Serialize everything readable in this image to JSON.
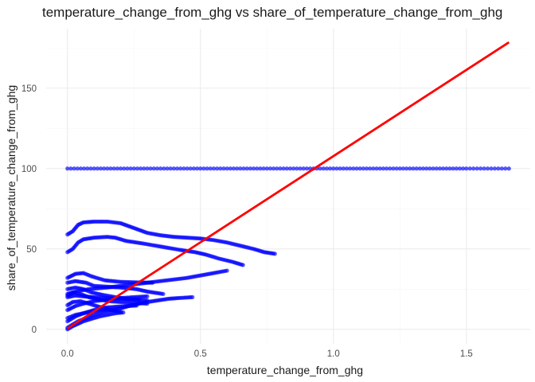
{
  "chart_data": {
    "type": "scatter",
    "title": "temperature_change_from_ghg vs share_of_temperature_change_from_ghg",
    "xlabel": "temperature_change_from_ghg",
    "ylabel": "share_of_temperature_change_from_ghg",
    "xlim": [
      -0.08,
      1.74
    ],
    "ylim": [
      -9,
      187
    ],
    "x_ticks": [
      0.0,
      0.5,
      1.0,
      1.5
    ],
    "x_tick_labels": [
      "0.0",
      "0.5",
      "1.0",
      "1.5"
    ],
    "y_ticks": [
      0,
      50,
      100,
      150
    ],
    "y_tick_labels": [
      "0",
      "50",
      "100",
      "150"
    ],
    "grid": true,
    "legend": "none",
    "point_color": "#0000ff",
    "point_opacity": 0.65,
    "fit_line_color": "#ff0000",
    "fit_line": {
      "x": [
        0.0,
        1.66
      ],
      "y": [
        0.5,
        178.5
      ]
    },
    "series": [
      {
        "points": [
          [
            0.0,
            100
          ],
          [
            0.1,
            100
          ],
          [
            0.2,
            100
          ],
          [
            0.3,
            100
          ],
          [
            0.4,
            100
          ],
          [
            0.5,
            100
          ],
          [
            0.6,
            100
          ],
          [
            0.7,
            100
          ],
          [
            0.8,
            100
          ],
          [
            0.9,
            100
          ],
          [
            1.0,
            100
          ],
          [
            1.1,
            100
          ],
          [
            1.2,
            100
          ],
          [
            1.3,
            100
          ],
          [
            1.4,
            100
          ],
          [
            1.5,
            100
          ],
          [
            1.66,
            100
          ]
        ]
      },
      {
        "points": [
          [
            0.0,
            59
          ],
          [
            0.02,
            61
          ],
          [
            0.04,
            65
          ],
          [
            0.06,
            66.5
          ],
          [
            0.1,
            67
          ],
          [
            0.15,
            67
          ],
          [
            0.2,
            66
          ],
          [
            0.25,
            63
          ],
          [
            0.3,
            60
          ],
          [
            0.35,
            58.5
          ],
          [
            0.4,
            57.5
          ],
          [
            0.45,
            57
          ],
          [
            0.5,
            56.5
          ],
          [
            0.55,
            55.5
          ],
          [
            0.6,
            54
          ],
          [
            0.65,
            52
          ],
          [
            0.7,
            50
          ],
          [
            0.74,
            48
          ],
          [
            0.78,
            47
          ]
        ]
      },
      {
        "points": [
          [
            0.0,
            48
          ],
          [
            0.02,
            50
          ],
          [
            0.04,
            54
          ],
          [
            0.06,
            56
          ],
          [
            0.1,
            57
          ],
          [
            0.15,
            57.5
          ],
          [
            0.18,
            57
          ],
          [
            0.22,
            55
          ],
          [
            0.28,
            53.5
          ],
          [
            0.35,
            51.5
          ],
          [
            0.42,
            49.5
          ],
          [
            0.48,
            48
          ],
          [
            0.52,
            46.5
          ],
          [
            0.57,
            44
          ],
          [
            0.62,
            42
          ],
          [
            0.66,
            40
          ]
        ]
      },
      {
        "points": [
          [
            0.0,
            21
          ],
          [
            0.03,
            23.5
          ],
          [
            0.08,
            25
          ],
          [
            0.15,
            26
          ],
          [
            0.2,
            27
          ],
          [
            0.25,
            28
          ],
          [
            0.3,
            29
          ],
          [
            0.35,
            30
          ],
          [
            0.4,
            31
          ],
          [
            0.45,
            32
          ],
          [
            0.5,
            33.5
          ],
          [
            0.55,
            35
          ],
          [
            0.6,
            36.5
          ]
        ]
      },
      {
        "points": [
          [
            0.0,
            32
          ],
          [
            0.03,
            34.5
          ],
          [
            0.06,
            35
          ],
          [
            0.09,
            33
          ],
          [
            0.14,
            30.5
          ],
          [
            0.2,
            29.5
          ],
          [
            0.26,
            29.2
          ],
          [
            0.32,
            29
          ]
        ]
      },
      {
        "points": [
          [
            0.0,
            29
          ],
          [
            0.03,
            30
          ],
          [
            0.07,
            29
          ],
          [
            0.1,
            27
          ],
          [
            0.15,
            26.5
          ],
          [
            0.2,
            26
          ],
          [
            0.26,
            25
          ],
          [
            0.3,
            23.5
          ],
          [
            0.36,
            22
          ]
        ]
      },
      {
        "points": [
          [
            0.0,
            12
          ],
          [
            0.03,
            14.5
          ],
          [
            0.06,
            16
          ],
          [
            0.1,
            17.5
          ],
          [
            0.15,
            18.5
          ],
          [
            0.2,
            19.5
          ],
          [
            0.25,
            20
          ],
          [
            0.3,
            20.5
          ]
        ]
      },
      {
        "points": [
          [
            0.0,
            20
          ],
          [
            0.03,
            21
          ],
          [
            0.06,
            20.5
          ],
          [
            0.1,
            20
          ],
          [
            0.15,
            19.5
          ],
          [
            0.2,
            19
          ],
          [
            0.25,
            18.5
          ],
          [
            0.3,
            18
          ]
        ]
      },
      {
        "points": [
          [
            0.0,
            22
          ],
          [
            0.02,
            23
          ],
          [
            0.05,
            22
          ],
          [
            0.08,
            20
          ],
          [
            0.12,
            18.5
          ],
          [
            0.16,
            17.5
          ],
          [
            0.2,
            17
          ],
          [
            0.25,
            16.5
          ],
          [
            0.3,
            16
          ]
        ]
      },
      {
        "points": [
          [
            0.0,
            25
          ],
          [
            0.03,
            26
          ],
          [
            0.06,
            25
          ],
          [
            0.09,
            23
          ],
          [
            0.13,
            21.5
          ],
          [
            0.18,
            20
          ],
          [
            0.22,
            19
          ],
          [
            0.27,
            18.5
          ]
        ]
      },
      {
        "points": [
          [
            0.0,
            5
          ],
          [
            0.03,
            8
          ],
          [
            0.06,
            10
          ],
          [
            0.1,
            12
          ],
          [
            0.14,
            13.5
          ],
          [
            0.18,
            14
          ],
          [
            0.22,
            14.5
          ],
          [
            0.26,
            14.8
          ]
        ]
      },
      {
        "points": [
          [
            0.0,
            1
          ],
          [
            0.02,
            3
          ],
          [
            0.04,
            5
          ],
          [
            0.07,
            7
          ],
          [
            0.1,
            9
          ],
          [
            0.13,
            10.5
          ],
          [
            0.17,
            12
          ],
          [
            0.2,
            13
          ],
          [
            0.22,
            14
          ],
          [
            0.24,
            15
          ],
          [
            0.27,
            16
          ],
          [
            0.3,
            17
          ],
          [
            0.34,
            18
          ],
          [
            0.38,
            19
          ],
          [
            0.42,
            19.5
          ],
          [
            0.47,
            20
          ]
        ]
      },
      {
        "points": [
          [
            0.0,
            0
          ],
          [
            0.01,
            1
          ],
          [
            0.02,
            2
          ],
          [
            0.04,
            3.5
          ],
          [
            0.06,
            5
          ],
          [
            0.09,
            6.5
          ],
          [
            0.12,
            8
          ],
          [
            0.15,
            9
          ],
          [
            0.18,
            10
          ],
          [
            0.21,
            10.5
          ]
        ]
      },
      {
        "points": [
          [
            0.0,
            15
          ],
          [
            0.02,
            17
          ],
          [
            0.05,
            17.5
          ],
          [
            0.08,
            16
          ],
          [
            0.12,
            14
          ],
          [
            0.16,
            12
          ],
          [
            0.2,
            11
          ]
        ]
      },
      {
        "points": [
          [
            0.0,
            7
          ],
          [
            0.03,
            9
          ],
          [
            0.06,
            10
          ],
          [
            0.09,
            11
          ],
          [
            0.12,
            12
          ],
          [
            0.15,
            12.5
          ]
        ]
      }
    ]
  }
}
